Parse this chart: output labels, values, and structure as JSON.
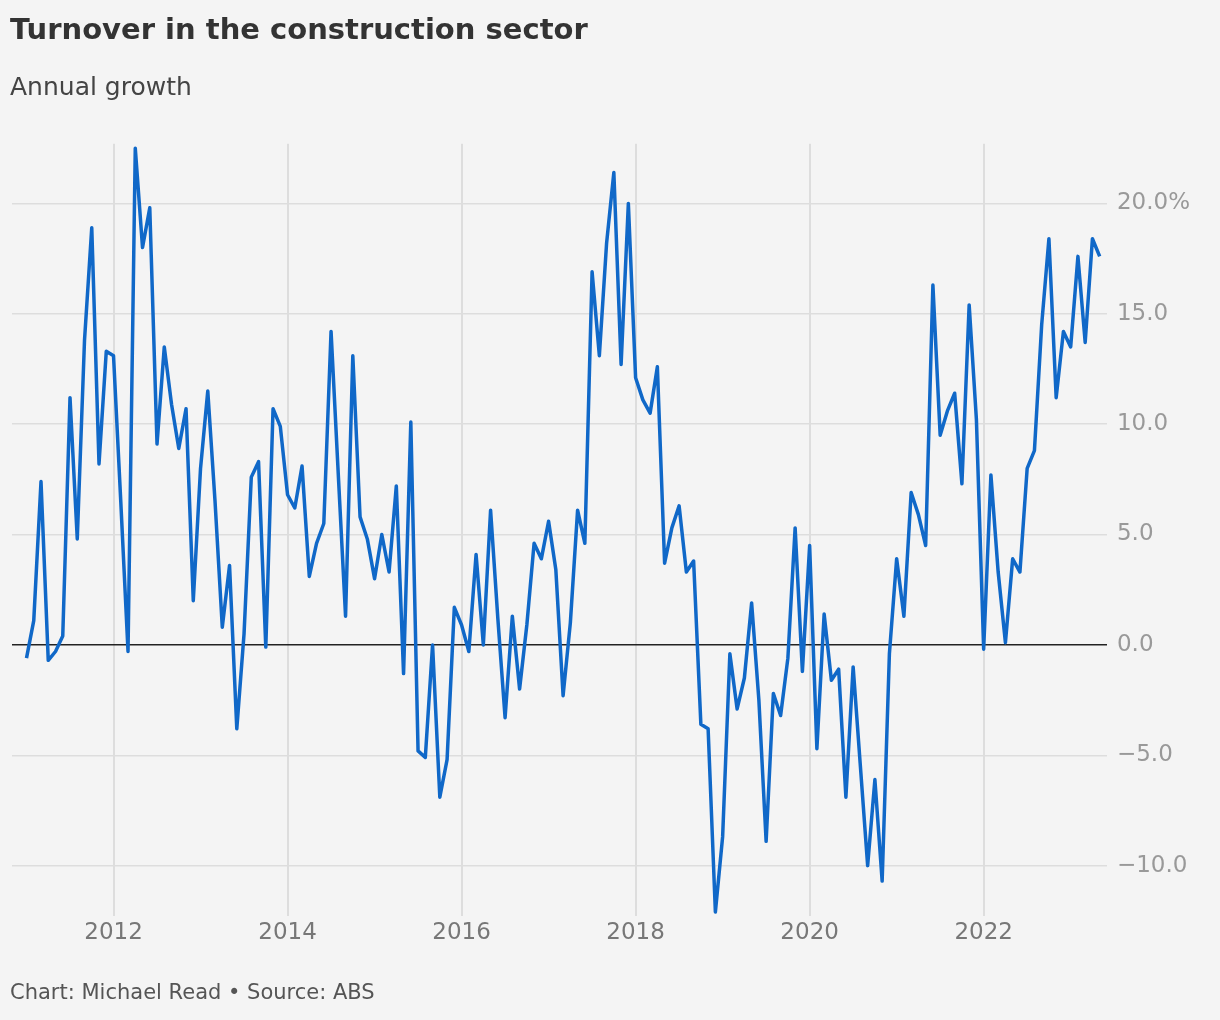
{
  "chart_data": {
    "type": "line",
    "title": "Turnover in the construction sector",
    "subtitle": "Annual growth",
    "annotations": [
      "Chart: Michael Read • Source: ABS"
    ],
    "x": [
      "2011-01",
      "2011-02",
      "2011-03",
      "2011-04",
      "2011-05",
      "2011-06",
      "2011-07",
      "2011-08",
      "2011-09",
      "2011-10",
      "2011-11",
      "2011-12",
      "2012-01",
      "2012-02",
      "2012-03",
      "2012-04",
      "2012-05",
      "2012-06",
      "2012-07",
      "2012-08",
      "2012-09",
      "2012-10",
      "2012-11",
      "2012-12",
      "2013-01",
      "2013-02",
      "2013-03",
      "2013-04",
      "2013-05",
      "2013-06",
      "2013-07",
      "2013-08",
      "2013-09",
      "2013-10",
      "2013-11",
      "2013-12",
      "2014-01",
      "2014-02",
      "2014-03",
      "2014-04",
      "2014-05",
      "2014-06",
      "2014-07",
      "2014-08",
      "2014-09",
      "2014-10",
      "2014-11",
      "2014-12",
      "2015-01",
      "2015-02",
      "2015-03",
      "2015-04",
      "2015-05",
      "2015-06",
      "2015-07",
      "2015-08",
      "2015-09",
      "2015-10",
      "2015-11",
      "2015-12",
      "2016-01",
      "2016-02",
      "2016-03",
      "2016-04",
      "2016-05",
      "2016-06",
      "2016-07",
      "2016-08",
      "2016-09",
      "2016-10",
      "2016-11",
      "2016-12",
      "2017-01",
      "2017-02",
      "2017-03",
      "2017-04",
      "2017-05",
      "2017-06",
      "2017-07",
      "2017-08",
      "2017-09",
      "2017-10",
      "2017-11",
      "2017-12",
      "2018-01",
      "2018-02",
      "2018-03",
      "2018-04",
      "2018-05",
      "2018-06",
      "2018-07",
      "2018-08",
      "2018-09",
      "2018-10",
      "2018-11",
      "2018-12",
      "2019-01",
      "2019-02",
      "2019-03",
      "2019-04",
      "2019-05",
      "2019-06",
      "2019-07",
      "2019-08",
      "2019-09",
      "2019-10",
      "2019-11",
      "2019-12",
      "2020-01",
      "2020-02",
      "2020-03",
      "2020-04",
      "2020-05",
      "2020-06",
      "2020-07",
      "2020-08",
      "2020-09",
      "2020-10",
      "2020-11",
      "2020-12",
      "2021-01",
      "2021-02",
      "2021-03",
      "2021-04",
      "2021-05",
      "2021-06",
      "2021-07",
      "2021-08",
      "2021-09",
      "2021-10",
      "2021-11",
      "2021-12",
      "2022-01",
      "2022-02",
      "2022-03",
      "2022-04",
      "2022-05",
      "2022-06",
      "2022-07",
      "2022-08",
      "2022-09",
      "2022-10",
      "2022-11",
      "2022-12",
      "2023-01",
      "2023-02",
      "2023-03",
      "2023-04",
      "2023-05"
    ],
    "series": [
      {
        "color": "#1068c8",
        "values": [
          -0.6,
          1.1,
          7.4,
          -0.7,
          -0.3,
          0.4,
          11.2,
          4.8,
          13.8,
          18.9,
          8.2,
          13.3,
          13.1,
          6.5,
          -0.3,
          22.5,
          18.0,
          19.8,
          9.1,
          13.5,
          10.9,
          8.9,
          10.7,
          2.0,
          8.0,
          11.5,
          6.5,
          0.8,
          3.6,
          -3.8,
          0.5,
          7.6,
          8.3,
          -0.1,
          10.7,
          9.9,
          6.8,
          6.2,
          8.1,
          3.1,
          4.6,
          5.5,
          14.2,
          7.7,
          1.3,
          13.1,
          5.8,
          4.8,
          3.0,
          5.0,
          3.3,
          7.2,
          -1.3,
          10.1,
          -4.8,
          -5.1,
          0.0,
          -6.9,
          -5.2,
          1.7,
          0.9,
          -0.3,
          4.1,
          0.0,
          6.1,
          1.2,
          -3.3,
          1.3,
          -2.0,
          0.9,
          4.6,
          3.9,
          5.6,
          3.4,
          -2.3,
          1.0,
          6.1,
          4.6,
          16.9,
          13.1,
          18.2,
          21.4,
          12.7,
          20.0,
          12.1,
          11.1,
          10.5,
          12.6,
          3.7,
          5.3,
          6.3,
          3.3,
          3.8,
          -3.6,
          -3.8,
          -12.1,
          -8.7,
          -0.4,
          -2.9,
          -1.5,
          1.9,
          -2.5,
          -8.9,
          -2.2,
          -3.2,
          -0.6,
          5.3,
          -1.2,
          4.5,
          -4.7,
          1.4,
          -1.6,
          -1.1,
          -6.9,
          -1.0,
          -5.5,
          -10.0,
          -6.1,
          -10.7,
          -0.4,
          3.9,
          1.3,
          6.9,
          5.9,
          4.5,
          16.3,
          9.5,
          10.6,
          11.4,
          7.3,
          15.4,
          10.2,
          -0.2,
          7.7,
          3.3,
          0.1,
          3.9,
          3.3,
          8.0,
          8.8,
          14.5,
          18.4,
          11.2,
          14.2,
          13.5,
          17.6,
          13.7,
          18.4,
          17.6
        ]
      }
    ],
    "xlim": [
      "2010-11",
      "2023-06"
    ],
    "xticks": [
      "2012",
      "2014",
      "2016",
      "2018",
      "2020",
      "2022"
    ],
    "ylim": [
      -12.3,
      22.7
    ],
    "yticks": [
      {
        "value": -10,
        "label": "−10.0"
      },
      {
        "value": -5,
        "label": "−5.0"
      },
      {
        "value": 0,
        "label": "0.0"
      },
      {
        "value": 5,
        "label": "5.0"
      },
      {
        "value": 10,
        "label": "10.0"
      },
      {
        "value": 15,
        "label": "15.0"
      },
      {
        "value": 20,
        "label": "20.0%"
      }
    ],
    "grid": true,
    "legend": false,
    "marker": "none",
    "line_style": "solid"
  }
}
